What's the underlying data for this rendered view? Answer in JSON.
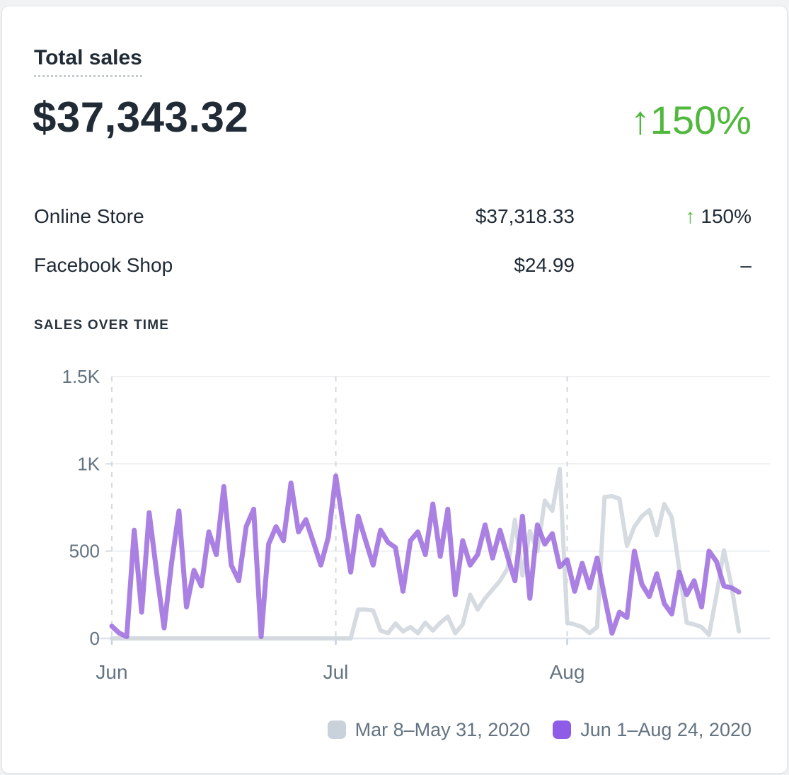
{
  "card": {
    "title": "Total sales",
    "total_value": "$37,343.32",
    "delta_arrow": "↑",
    "total_delta": "150%",
    "breakdown": [
      {
        "channel": "Online Store",
        "value": "$37,318.33",
        "delta_arrow": "↑",
        "delta": "150%"
      },
      {
        "channel": "Facebook Shop",
        "value": "$24.99",
        "delta": "–"
      }
    ],
    "section_title": "SALES OVER TIME"
  },
  "colors": {
    "accent_purple": "#9c6ade",
    "previous_gray": "#d0d7dd",
    "positive_green": "#50b83c",
    "text_dark": "#212b36",
    "text_gray": "#637381",
    "grid": "#e8ebee",
    "grid_dashed": "#d6dbe1",
    "axis_line": "#dfe5f0",
    "axis_tick": "#c7d1e4"
  },
  "legend": [
    {
      "label": "Mar 8–May 31, 2020",
      "color": "#c9d2da"
    },
    {
      "label": "Jun 1–Aug 24, 2020",
      "color": "#8e5ce6"
    }
  ],
  "chart_data": {
    "type": "line",
    "title": "Sales over time",
    "xlabel": "",
    "ylabel": "",
    "ylim": [
      0,
      1500
    ],
    "grid": "horizontal solid, dashed verticals at month starts",
    "legend_position": "bottom-right",
    "y_ticks": [
      {
        "value": 0,
        "label": "0"
      },
      {
        "value": 500,
        "label": "500"
      },
      {
        "value": 1000,
        "label": "1K"
      },
      {
        "value": 1500,
        "label": "1.5K"
      }
    ],
    "x_ticks": [
      {
        "day": 0,
        "label": "Jun"
      },
      {
        "day": 30,
        "label": "Jul"
      },
      {
        "day": 61,
        "label": "Aug"
      }
    ],
    "series": [
      {
        "name": "Mar 8–May 31, 2020",
        "color": "#d0d7dd",
        "values": [
          0,
          0,
          0,
          0,
          0,
          0,
          0,
          0,
          0,
          0,
          0,
          0,
          0,
          0,
          0,
          0,
          0,
          0,
          0,
          0,
          0,
          0,
          0,
          0,
          0,
          0,
          0,
          0,
          0,
          0,
          0,
          0,
          0,
          165,
          165,
          160,
          45,
          30,
          85,
          40,
          65,
          30,
          90,
          45,
          90,
          125,
          30,
          80,
          250,
          165,
          230,
          280,
          330,
          400,
          680,
          360,
          615,
          500,
          790,
          730,
          970,
          90,
          80,
          65,
          30,
          65,
          810,
          815,
          800,
          530,
          640,
          700,
          735,
          590,
          770,
          695,
          400,
          90,
          80,
          65,
          20,
          250,
          505,
          300,
          40
        ]
      },
      {
        "name": "Jun 1–Aug 24, 2020",
        "color": "#9c6ade",
        "values": [
          70,
          30,
          10,
          620,
          150,
          720,
          380,
          60,
          430,
          730,
          180,
          390,
          300,
          610,
          480,
          870,
          420,
          330,
          640,
          740,
          10,
          540,
          640,
          560,
          890,
          610,
          680,
          550,
          420,
          580,
          930,
          650,
          380,
          700,
          560,
          420,
          620,
          550,
          520,
          270,
          560,
          610,
          480,
          770,
          470,
          740,
          250,
          560,
          420,
          480,
          650,
          460,
          620,
          470,
          330,
          700,
          230,
          650,
          540,
          600,
          410,
          450,
          270,
          430,
          290,
          460,
          240,
          30,
          150,
          120,
          500,
          310,
          240,
          370,
          200,
          140,
          380,
          250,
          330,
          180,
          500,
          440,
          300,
          290,
          265
        ]
      }
    ]
  }
}
